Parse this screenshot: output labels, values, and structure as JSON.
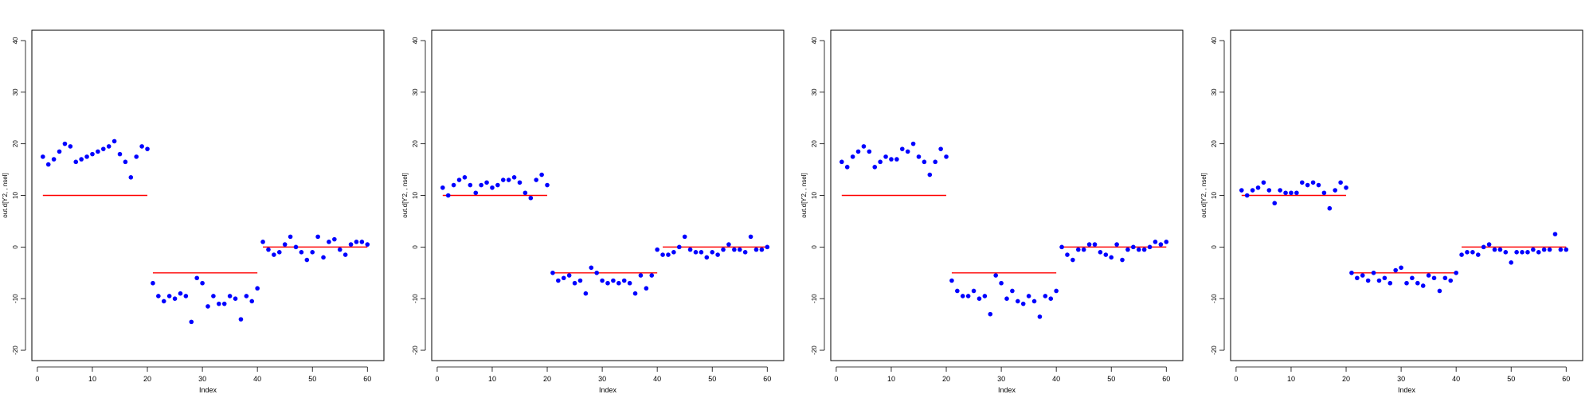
{
  "style": {
    "point_color": "#0000ff",
    "segment_color": "#ff0000",
    "frame_color": "#000000"
  },
  "chart_data": [
    {
      "type": "scatter",
      "xlabel": "Index",
      "ylabel": "out.d[Ƴ2, , nsel]",
      "xlim": [
        -1,
        63
      ],
      "ylim": [
        -22,
        42
      ],
      "xticks": [
        0,
        10,
        20,
        30,
        40,
        50,
        60
      ],
      "yticks": [
        -20,
        -10,
        0,
        10,
        20,
        30,
        40
      ],
      "segments": [
        {
          "x": [
            1,
            20
          ],
          "y": 10
        },
        {
          "x": [
            21,
            40
          ],
          "y": -5
        },
        {
          "x": [
            41,
            60
          ],
          "y": 0
        }
      ],
      "x": [
        1,
        2,
        3,
        4,
        5,
        6,
        7,
        8,
        9,
        10,
        11,
        12,
        13,
        14,
        15,
        16,
        17,
        18,
        19,
        20,
        21,
        22,
        23,
        24,
        25,
        26,
        27,
        28,
        29,
        30,
        31,
        32,
        33,
        34,
        35,
        36,
        37,
        38,
        39,
        40,
        41,
        42,
        43,
        44,
        45,
        46,
        47,
        48,
        49,
        50,
        51,
        52,
        53,
        54,
        55,
        56,
        57,
        58,
        59,
        60
      ],
      "y": [
        17.5,
        16,
        17,
        18.5,
        20,
        19.5,
        16.5,
        17,
        17.5,
        18,
        18.5,
        19,
        19.5,
        20.5,
        18,
        16.5,
        13.5,
        17.5,
        19.5,
        19,
        -7,
        -9.5,
        -10.5,
        -9.5,
        -10,
        -9,
        -9.5,
        -14.5,
        -6,
        -7,
        -11.5,
        -9.5,
        -11,
        -11,
        -9.5,
        -10,
        -14,
        -9.5,
        -10.5,
        -8,
        1,
        -0.5,
        -1.5,
        -1,
        0.5,
        2,
        0,
        -1,
        -2.5,
        -1,
        2,
        -2,
        1,
        1.5,
        -0.5,
        -1.5,
        0.5,
        1,
        1,
        0.5
      ]
    },
    {
      "type": "scatter",
      "xlabel": "Index",
      "ylabel": "out.d[Ƴ2, , nsel]",
      "xlim": [
        -1,
        63
      ],
      "ylim": [
        -22,
        42
      ],
      "xticks": [
        0,
        10,
        20,
        30,
        40,
        50,
        60
      ],
      "yticks": [
        -20,
        -10,
        0,
        10,
        20,
        30,
        40
      ],
      "segments": [
        {
          "x": [
            1,
            20
          ],
          "y": 10
        },
        {
          "x": [
            21,
            40
          ],
          "y": -5
        },
        {
          "x": [
            41,
            60
          ],
          "y": 0
        }
      ],
      "x": [
        1,
        2,
        3,
        4,
        5,
        6,
        7,
        8,
        9,
        10,
        11,
        12,
        13,
        14,
        15,
        16,
        17,
        18,
        19,
        20,
        21,
        22,
        23,
        24,
        25,
        26,
        27,
        28,
        29,
        30,
        31,
        32,
        33,
        34,
        35,
        36,
        37,
        38,
        39,
        40,
        41,
        42,
        43,
        44,
        45,
        46,
        47,
        48,
        49,
        50,
        51,
        52,
        53,
        54,
        55,
        56,
        57,
        58,
        59,
        60
      ],
      "y": [
        11.5,
        10,
        12,
        13,
        13.5,
        12,
        10.5,
        12,
        12.5,
        11.5,
        12,
        13,
        13,
        13.5,
        12.5,
        10.5,
        9.5,
        13,
        14,
        12,
        -5,
        -6.5,
        -6,
        -5.5,
        -7,
        -6.5,
        -9,
        -4,
        -5,
        -6.5,
        -7,
        -6.5,
        -7,
        -6.5,
        -7,
        -9,
        -5.5,
        -8,
        -5.5,
        -0.5,
        -1.5,
        -1.5,
        -1,
        0,
        2,
        -0.5,
        -1,
        -1,
        -2,
        -1,
        -1.5,
        -0.5,
        0.5,
        -0.5,
        -0.5,
        -1,
        2,
        -0.5,
        -0.5,
        0
      ]
    },
    {
      "type": "scatter",
      "xlabel": "Index",
      "ylabel": "out.d[Ƴ2, , nsel]",
      "xlim": [
        -1,
        63
      ],
      "ylim": [
        -22,
        42
      ],
      "xticks": [
        0,
        10,
        20,
        30,
        40,
        50,
        60
      ],
      "yticks": [
        -20,
        -10,
        0,
        10,
        20,
        30,
        40
      ],
      "segments": [
        {
          "x": [
            1,
            20
          ],
          "y": 10
        },
        {
          "x": [
            21,
            40
          ],
          "y": -5
        },
        {
          "x": [
            41,
            60
          ],
          "y": 0
        }
      ],
      "x": [
        1,
        2,
        3,
        4,
        5,
        6,
        7,
        8,
        9,
        10,
        11,
        12,
        13,
        14,
        15,
        16,
        17,
        18,
        19,
        20,
        21,
        22,
        23,
        24,
        25,
        26,
        27,
        28,
        29,
        30,
        31,
        32,
        33,
        34,
        35,
        36,
        37,
        38,
        39,
        40,
        41,
        42,
        43,
        44,
        45,
        46,
        47,
        48,
        49,
        50,
        51,
        52,
        53,
        54,
        55,
        56,
        57,
        58,
        59,
        60
      ],
      "y": [
        16.5,
        15.5,
        17.5,
        18.5,
        19.5,
        18.5,
        15.5,
        16.5,
        17.5,
        17,
        17,
        19,
        18.5,
        20,
        17.5,
        16.5,
        14,
        16.5,
        19,
        17.5,
        -6.5,
        -8.5,
        -9.5,
        -9.5,
        -8.5,
        -10,
        -9.5,
        -13,
        -5.5,
        -7,
        -10,
        -8.5,
        -10.5,
        -11,
        -9.5,
        -10.5,
        -13.5,
        -9.5,
        -10,
        -8.5,
        0,
        -1.5,
        -2.5,
        -0.5,
        -0.5,
        0.5,
        0.5,
        -1,
        -1.5,
        -2,
        0.5,
        -2.5,
        -0.5,
        0,
        -0.5,
        -0.5,
        0,
        1,
        0.5,
        1
      ]
    },
    {
      "type": "scatter",
      "xlabel": "Index",
      "ylabel": "out.d[Ƴ2, , nsel]",
      "xlim": [
        -1,
        63
      ],
      "ylim": [
        -22,
        42
      ],
      "xticks": [
        0,
        10,
        20,
        30,
        40,
        50,
        60
      ],
      "yticks": [
        -20,
        -10,
        0,
        10,
        20,
        30,
        40
      ],
      "segments": [
        {
          "x": [
            1,
            20
          ],
          "y": 10
        },
        {
          "x": [
            21,
            40
          ],
          "y": -5
        },
        {
          "x": [
            41,
            60
          ],
          "y": 0
        }
      ],
      "x": [
        1,
        2,
        3,
        4,
        5,
        6,
        7,
        8,
        9,
        10,
        11,
        12,
        13,
        14,
        15,
        16,
        17,
        18,
        19,
        20,
        21,
        22,
        23,
        24,
        25,
        26,
        27,
        28,
        29,
        30,
        31,
        32,
        33,
        34,
        35,
        36,
        37,
        38,
        39,
        40,
        41,
        42,
        43,
        44,
        45,
        46,
        47,
        48,
        49,
        50,
        51,
        52,
        53,
        54,
        55,
        56,
        57,
        58,
        59,
        60
      ],
      "y": [
        11,
        10,
        11,
        11.5,
        12.5,
        11,
        8.5,
        11,
        10.5,
        10.5,
        10.5,
        12.5,
        12,
        12.5,
        12,
        10.5,
        7.5,
        11,
        12.5,
        11.5,
        -5,
        -6,
        -5.5,
        -6.5,
        -5,
        -6.5,
        -6,
        -7,
        -4.5,
        -4,
        -7,
        -6,
        -7,
        -7.5,
        -5.5,
        -6,
        -8.5,
        -6,
        -6.5,
        -5,
        -1.5,
        -1,
        -1,
        -1.5,
        0,
        0.5,
        -0.5,
        -0.5,
        -1,
        -3,
        -1,
        -1,
        -1,
        -0.5,
        -1,
        -0.5,
        -0.5,
        2.5,
        -0.5,
        -0.5
      ]
    }
  ]
}
